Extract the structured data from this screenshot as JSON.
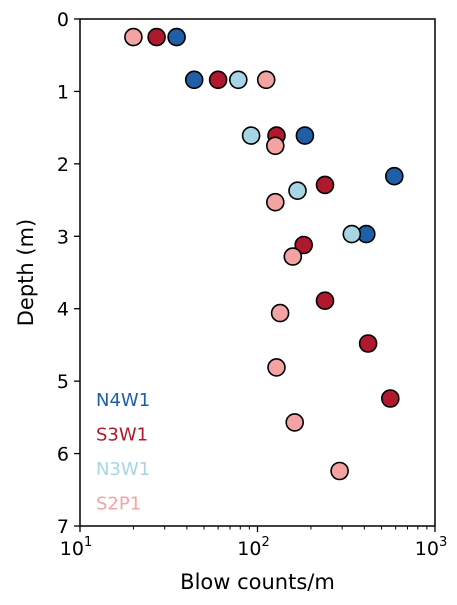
{
  "chart_data": {
    "type": "scatter",
    "xlabel": "Blow counts/m",
    "ylabel": "Depth (m)",
    "x_scale": "log",
    "xlim": [
      10,
      1000
    ],
    "ylim": [
      0,
      7
    ],
    "y_inverted": true,
    "x_ticks": [
      {
        "base": "10",
        "exp": "1"
      },
      {
        "base": "10",
        "exp": "2"
      },
      {
        "base": "10",
        "exp": "3"
      }
    ],
    "y_ticks": [
      "0",
      "1",
      "2",
      "3",
      "4",
      "5",
      "6",
      "7"
    ],
    "grid": false,
    "legend_position": "bottom-left",
    "series": [
      {
        "name": "N4W1",
        "color": "#1f5fa8",
        "points": [
          [
            35,
            0.25
          ],
          [
            44,
            0.84
          ],
          [
            185,
            1.61
          ],
          [
            590,
            2.17
          ],
          [
            410,
            2.97
          ]
        ]
      },
      {
        "name": "S3W1",
        "color": "#b0182d",
        "points": [
          [
            27,
            0.25
          ],
          [
            60,
            0.84
          ],
          [
            128,
            1.61
          ],
          [
            240,
            2.29
          ],
          [
            182,
            3.12
          ],
          [
            240,
            3.89
          ],
          [
            420,
            4.48
          ],
          [
            560,
            5.24
          ]
        ]
      },
      {
        "name": "N3W1",
        "color": "#a8d5e5",
        "points": [
          [
            78,
            0.84
          ],
          [
            92,
            1.61
          ],
          [
            168,
            2.37
          ],
          [
            340,
            2.97
          ]
        ]
      },
      {
        "name": "S2P1",
        "color": "#f4a3a3",
        "points": [
          [
            20,
            0.25
          ],
          [
            112,
            0.84
          ],
          [
            126,
            1.75
          ],
          [
            126,
            2.53
          ],
          [
            158,
            3.28
          ],
          [
            134,
            4.06
          ],
          [
            128,
            4.81
          ],
          [
            162,
            5.57
          ],
          [
            290,
            6.24
          ]
        ]
      }
    ]
  }
}
